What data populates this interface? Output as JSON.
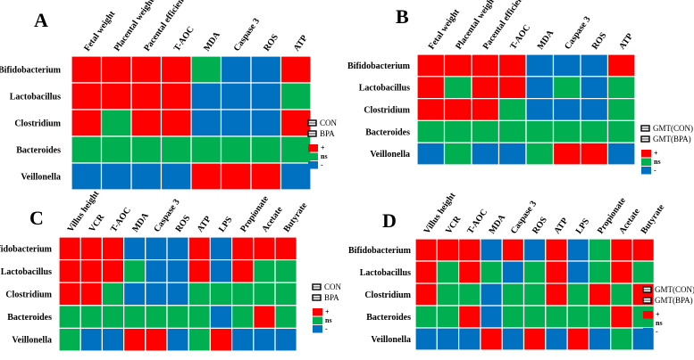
{
  "legend": {
    "symbols": [
      "+",
      "ns",
      "-"
    ],
    "colors": {
      "+": "#ff0000",
      "ns": "#00b050",
      "-": "#0070c0"
    }
  },
  "chart_data": [
    {
      "type": "heatmap",
      "panel": "A",
      "groups": [
        "CON",
        "BPA"
      ],
      "rows": [
        "Bifidobacterium",
        "Lactobacillus",
        "Clostridium",
        "Bacteroides",
        "Veillonella"
      ],
      "columns": [
        "Fetal weight",
        "Placental weight",
        "Pacental efficiency",
        "T-AOC",
        "MDA",
        "Caspase 3",
        "ROS",
        "ATP"
      ],
      "values": [
        [
          "+",
          "+",
          "+",
          "+",
          "ns",
          "-",
          "-",
          "+"
        ],
        [
          "+",
          "+",
          "+",
          "+",
          "-",
          "-",
          "-",
          "ns"
        ],
        [
          "+",
          "ns",
          "+",
          "+",
          "-",
          "-",
          "-",
          "+"
        ],
        [
          "ns",
          "ns",
          "ns",
          "ns",
          "ns",
          "ns",
          "ns",
          "ns"
        ],
        [
          "-",
          "-",
          "-",
          "-",
          "+",
          "+",
          "+",
          "-"
        ]
      ]
    },
    {
      "type": "heatmap",
      "panel": "B",
      "groups": [
        "GMT(CON)",
        "GMT(BPA)"
      ],
      "rows": [
        "Bifidobacterium",
        "Lactobacillus",
        "Clostridium",
        "Bacteroides",
        "Veillonella"
      ],
      "columns": [
        "Fetal weight",
        "Placental weight",
        "Pacental efficiency",
        "T-AOC",
        "MDA",
        "Caspase 3",
        "ROS",
        "ATP"
      ],
      "values": [
        [
          "+",
          "+",
          "+",
          "+",
          "-",
          "-",
          "-",
          "+"
        ],
        [
          "+",
          "ns",
          "+",
          "+",
          "-",
          "ns",
          "-",
          "ns"
        ],
        [
          "+",
          "+",
          "+",
          "ns",
          "-",
          "-",
          "-",
          "ns"
        ],
        [
          "ns",
          "ns",
          "ns",
          "ns",
          "ns",
          "ns",
          "ns",
          "ns"
        ],
        [
          "-",
          "ns",
          "-",
          "-",
          "ns",
          "+",
          "+",
          "-"
        ]
      ]
    },
    {
      "type": "heatmap",
      "panel": "C",
      "groups": [
        "CON",
        "BPA"
      ],
      "rows": [
        "Bifidobacterium",
        "Lactobacillus",
        "Clostridium",
        "Bacteroides",
        "Veillonella"
      ],
      "columns": [
        "Villus height",
        "VCR",
        "T-AOC",
        "MDA",
        "Caspase 3",
        "ROS",
        "ATP",
        "LPS",
        "Propionate",
        "Acetate",
        "Butyrate"
      ],
      "values": [
        [
          "+",
          "+",
          "+",
          "-",
          "-",
          "-",
          "+",
          "-",
          "+",
          "+",
          "+"
        ],
        [
          "+",
          "+",
          "+",
          "ns",
          "-",
          "-",
          "+",
          "-",
          "+",
          "ns",
          "ns"
        ],
        [
          "+",
          "+",
          "ns",
          "-",
          "-",
          "-",
          "ns",
          "ns",
          "ns",
          "ns",
          "ns"
        ],
        [
          "ns",
          "ns",
          "ns",
          "ns",
          "ns",
          "ns",
          "ns",
          "-",
          "ns",
          "+",
          "ns"
        ],
        [
          "ns",
          "-",
          "-",
          "+",
          "+",
          "-",
          "ns",
          "+",
          "-",
          "-",
          "-"
        ]
      ]
    },
    {
      "type": "heatmap",
      "panel": "D",
      "groups": [
        "GMT(CON)",
        "GMT(BPA)"
      ],
      "rows": [
        "Bifidobacterium",
        "Lactobacillus",
        "Clostridium",
        "Bacteroides",
        "Veillonella"
      ],
      "columns": [
        "Villus height",
        "VCR",
        "T-AOC",
        "MDA",
        "Caspase 3",
        "ROS",
        "ATP",
        "LPS",
        "Propionate",
        "Acetate",
        "Butyrate"
      ],
      "values": [
        [
          "+",
          "+",
          "+",
          "-",
          "+",
          "-",
          "+",
          "-",
          "ns",
          "+",
          "+"
        ],
        [
          "+",
          "ns",
          "+",
          "ns",
          "-",
          "ns",
          "+",
          "-",
          "ns",
          "+",
          "ns"
        ],
        [
          "+",
          "ns",
          "ns",
          "-",
          "ns",
          "ns",
          "+",
          "ns",
          "+",
          "ns",
          "+"
        ],
        [
          "ns",
          "ns",
          "+",
          "-",
          "ns",
          "ns",
          "ns",
          "ns",
          "ns",
          "+",
          "ns"
        ],
        [
          "-",
          "-",
          "-",
          "+",
          "-",
          "+",
          "-",
          "+",
          "-",
          "ns",
          "-"
        ]
      ]
    }
  ]
}
